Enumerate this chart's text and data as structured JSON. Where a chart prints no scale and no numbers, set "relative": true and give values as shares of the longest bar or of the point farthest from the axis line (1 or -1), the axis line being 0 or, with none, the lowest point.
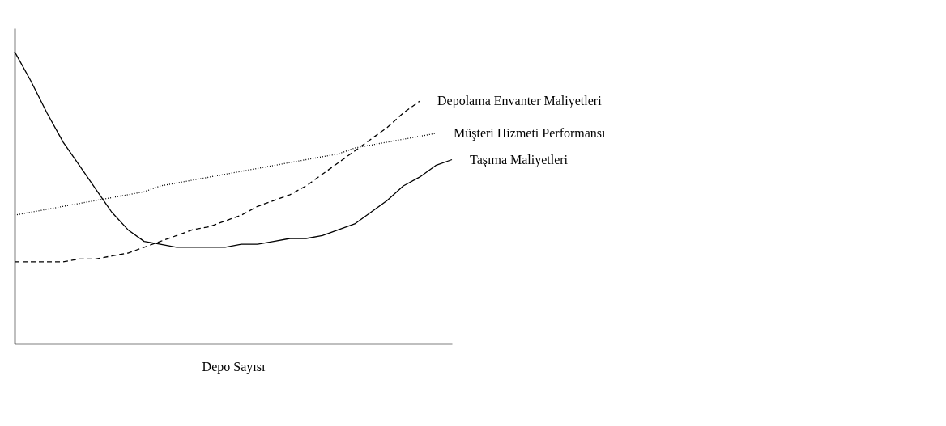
{
  "chart_data": {
    "type": "line",
    "relative": true,
    "xlabel": "Depo Sayısı",
    "tick_labels": false,
    "grid": false,
    "legend": false,
    "marker": "none",
    "categories": [
      null,
      null,
      null,
      null,
      null,
      null,
      null,
      null,
      null,
      null,
      null,
      null,
      null,
      null,
      null,
      null,
      null,
      null,
      null,
      null,
      null,
      null,
      null,
      null,
      null,
      null,
      null,
      null
    ],
    "series": [
      {
        "name": "Depolama  Envanter Maliyetleri",
        "color": "#000000",
        "line_style": "dashed",
        "values": [
          0.28,
          0.28,
          0.28,
          0.28,
          0.29,
          0.29,
          0.3,
          0.31,
          0.33,
          0.35,
          0.37,
          0.39,
          0.4,
          0.42,
          0.44,
          0.47,
          0.49,
          0.51,
          0.54,
          0.58,
          0.62,
          0.66,
          0.7,
          0.74,
          0.79,
          0.83,
          null,
          null
        ]
      },
      {
        "name": "Müşteri Hizmeti Performansı",
        "color": "#000000",
        "line_style": "dotted",
        "values": [
          0.44,
          0.45,
          0.46,
          0.47,
          0.48,
          0.49,
          0.5,
          0.51,
          0.52,
          0.54,
          0.55,
          0.56,
          0.57,
          0.58,
          0.59,
          0.6,
          0.61,
          0.62,
          0.63,
          0.64,
          0.65,
          0.67,
          0.68,
          0.69,
          0.7,
          0.71,
          0.72,
          null
        ]
      },
      {
        "name": "Taşıma Maliyetleri",
        "color": "#000000",
        "line_style": "solid",
        "values": [
          1.0,
          0.9,
          0.79,
          0.69,
          0.61,
          0.53,
          0.45,
          0.39,
          0.35,
          0.34,
          0.33,
          0.33,
          0.33,
          0.33,
          0.34,
          0.34,
          0.35,
          0.36,
          0.36,
          0.37,
          0.39,
          0.41,
          0.45,
          0.49,
          0.54,
          0.57,
          0.61,
          0.63
        ]
      }
    ]
  }
}
